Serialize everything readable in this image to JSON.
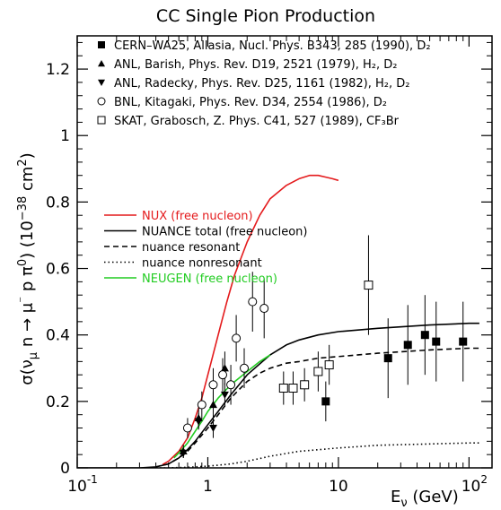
{
  "chart_data": {
    "type": "line",
    "title": "CC Single Pion Production",
    "xlabel": "E_ν (GeV)",
    "ylabel": "σ(ν_μ n → μ⁻ p π⁰) (10⁻³⁸ cm²)",
    "x_scale": "log",
    "xlim": [
      0.1,
      150
    ],
    "ylim": [
      0,
      1.3
    ],
    "x_ticks": [
      {
        "value": 0.1,
        "base": "10",
        "exp": "-1"
      },
      {
        "value": 1,
        "base": "1",
        "exp": ""
      },
      {
        "value": 10,
        "base": "10",
        "exp": ""
      },
      {
        "value": 100,
        "base": "10",
        "exp": "2"
      }
    ],
    "y_ticks": [
      {
        "value": 0,
        "label": "0"
      },
      {
        "value": 0.2,
        "label": "0.2"
      },
      {
        "value": 0.4,
        "label": "0.4"
      },
      {
        "value": 0.6,
        "label": "0.6"
      },
      {
        "value": 0.8,
        "label": "0.8"
      },
      {
        "value": 1.0,
        "label": "1"
      },
      {
        "value": 1.2,
        "label": "1.2"
      }
    ],
    "curves": [
      {
        "name": "NUX (free nucleon)",
        "color": "#e41a1c",
        "dash": "solid",
        "x": [
          0.45,
          0.5,
          0.6,
          0.7,
          0.8,
          0.9,
          1.0,
          1.2,
          1.4,
          1.6,
          2.0,
          2.5,
          3.0,
          4.0,
          5.0,
          6.0,
          7.0,
          8.0,
          9.0,
          10.0
        ],
        "y": [
          0.01,
          0.02,
          0.05,
          0.09,
          0.15,
          0.21,
          0.28,
          0.4,
          0.5,
          0.58,
          0.68,
          0.76,
          0.81,
          0.85,
          0.87,
          0.88,
          0.88,
          0.875,
          0.87,
          0.865
        ]
      },
      {
        "name": "NUANCE total (free nucleon)",
        "color": "#000000",
        "dash": "solid",
        "x": [
          0.1,
          0.2,
          0.3,
          0.4,
          0.5,
          0.6,
          0.7,
          0.8,
          1.0,
          1.2,
          1.5,
          2.0,
          3.0,
          4.0,
          5.0,
          7.0,
          10.0,
          20.0,
          50.0,
          100.0,
          120.0
        ],
        "y": [
          0,
          0,
          0,
          0.003,
          0.012,
          0.03,
          0.055,
          0.08,
          0.13,
          0.17,
          0.22,
          0.28,
          0.34,
          0.37,
          0.385,
          0.4,
          0.41,
          0.42,
          0.43,
          0.435,
          0.435
        ]
      },
      {
        "name": "nuance resonant",
        "color": "#000000",
        "dash": "dashed",
        "x": [
          0.4,
          0.5,
          0.6,
          0.7,
          0.8,
          1.0,
          1.2,
          1.5,
          2.0,
          2.5,
          3.0,
          4.0,
          5.0,
          7.0,
          10.0,
          20.0,
          50.0,
          100.0,
          120.0
        ],
        "y": [
          0.003,
          0.012,
          0.03,
          0.05,
          0.075,
          0.12,
          0.16,
          0.21,
          0.26,
          0.285,
          0.3,
          0.315,
          0.32,
          0.33,
          0.335,
          0.345,
          0.355,
          0.36,
          0.36
        ]
      },
      {
        "name": "nuance nonresonant",
        "color": "#000000",
        "dash": "dotted",
        "x": [
          0.4,
          0.5,
          0.7,
          1.0,
          1.5,
          2.0,
          3.0,
          5.0,
          10.0,
          20.0,
          50.0,
          100.0,
          120.0
        ],
        "y": [
          0,
          0,
          0.002,
          0.005,
          0.012,
          0.02,
          0.035,
          0.05,
          0.06,
          0.068,
          0.072,
          0.075,
          0.075
        ]
      },
      {
        "name": "NEUGEN (free nucleon)",
        "color": "#22cc22",
        "dash": "solid",
        "x": [
          0.55,
          0.6,
          0.7,
          0.8,
          0.9,
          1.0,
          1.2,
          1.5,
          2.0,
          2.5,
          3.0
        ],
        "y": [
          0.03,
          0.045,
          0.075,
          0.11,
          0.14,
          0.17,
          0.21,
          0.25,
          0.29,
          0.32,
          0.34
        ]
      }
    ],
    "datasets": [
      {
        "name": "CERN–WA25, Allasia, Nucl. Phys. B343, 285 (1990), D₂",
        "marker": "square-filled",
        "x": [
          8.0,
          24.0,
          34.0,
          46.0,
          56.0,
          90.0
        ],
        "y": [
          0.2,
          0.33,
          0.37,
          0.4,
          0.38,
          0.38
        ],
        "yerr": [
          0.06,
          0.12,
          0.12,
          0.12,
          0.12,
          0.12
        ]
      },
      {
        "name": "ANL, Barish, Phys. Rev. D19, 2521 (1979), H₂, D₂",
        "marker": "triangle-up-filled",
        "x": [
          0.65,
          0.85,
          1.1,
          1.35
        ],
        "y": [
          0.05,
          0.15,
          0.19,
          0.3
        ],
        "yerr": [
          0.02,
          0.03,
          0.04,
          0.05
        ]
      },
      {
        "name": "ANL, Radecky, Phys. Rev. D25, 1161 (1982), H₂, D₂",
        "marker": "triangle-down-filled",
        "x": [
          0.65,
          0.85,
          1.1,
          1.35
        ],
        "y": [
          0.045,
          0.14,
          0.12,
          0.22
        ],
        "yerr": [
          0.015,
          0.025,
          0.03,
          0.035
        ]
      },
      {
        "name": "BNL, Kitagaki, Phys. Rev. D34, 2554 (1986), D₂",
        "marker": "circle-open",
        "x": [
          0.7,
          0.9,
          1.1,
          1.3,
          1.5,
          1.65,
          1.9,
          2.2,
          2.7
        ],
        "y": [
          0.12,
          0.19,
          0.25,
          0.28,
          0.25,
          0.39,
          0.3,
          0.5,
          0.48
        ],
        "yerr": [
          0.03,
          0.04,
          0.05,
          0.05,
          0.06,
          0.07,
          0.06,
          0.09,
          0.09
        ]
      },
      {
        "name": "SKAT, Grabosch, Z. Phys. C41, 527 (1989), CF₃Br",
        "marker": "square-open",
        "x": [
          3.8,
          4.5,
          5.5,
          7.0,
          8.5,
          17.0
        ],
        "y": [
          0.24,
          0.24,
          0.25,
          0.29,
          0.31,
          0.55
        ],
        "yerr": [
          0.05,
          0.05,
          0.05,
          0.06,
          0.06,
          0.15
        ]
      }
    ],
    "legend_data_placement": "top-left",
    "legend_curves_placement": "middle-left",
    "grid": false
  }
}
